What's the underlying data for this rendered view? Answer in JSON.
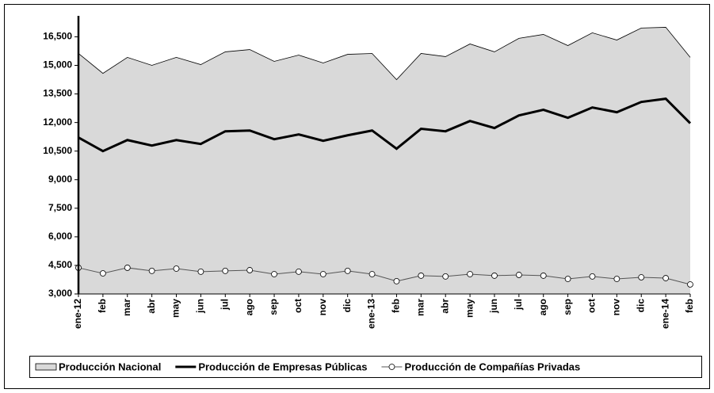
{
  "chart_data": {
    "type": "line",
    "categories": [
      "ene-12",
      "feb",
      "mar",
      "abr",
      "may",
      "jun",
      "jul",
      "ago",
      "sep",
      "oct",
      "nov",
      "dic",
      "ene-13",
      "feb",
      "mar",
      "abr",
      "may",
      "jun",
      "jul",
      "ago",
      "sep",
      "oct",
      "nov",
      "dic",
      "ene-14",
      "feb"
    ],
    "series": [
      {
        "name": "Producción Nacional",
        "color": "#d9d9d9",
        "style": "area",
        "values": [
          15625,
          14580,
          15420,
          15000,
          15420,
          15040,
          15710,
          15830,
          15210,
          15540,
          15125,
          15580,
          15625,
          14250,
          15625,
          15460,
          16125,
          15710,
          16420,
          16625,
          16040,
          16710,
          16330,
          16960,
          17000,
          15420
        ]
      },
      {
        "name": "Producción de Empresas Públicas",
        "color": "#000000",
        "style": "line",
        "values": [
          11210,
          10500,
          11080,
          10790,
          11080,
          10875,
          11540,
          11580,
          11125,
          11375,
          11040,
          11330,
          11580,
          10625,
          11670,
          11540,
          12080,
          11710,
          12375,
          12670,
          12250,
          12790,
          12540,
          13080,
          13250,
          11960
        ]
      },
      {
        "name": "Producción de Compañías Privadas",
        "color": "#555555",
        "style": "marker",
        "values": [
          4375,
          4080,
          4375,
          4210,
          4330,
          4170,
          4210,
          4250,
          4040,
          4170,
          4040,
          4210,
          4040,
          3670,
          3960,
          3920,
          4040,
          3960,
          4000,
          3960,
          3790,
          3920,
          3790,
          3875,
          3830,
          3500
        ]
      }
    ],
    "ylim": [
      3000,
      17600
    ],
    "yticks": [
      {
        "value": 3000,
        "label": "3,000"
      },
      {
        "value": 4500,
        "label": "4,500"
      },
      {
        "value": 6000,
        "label": "6,000"
      },
      {
        "value": 7500,
        "label": "7,500"
      },
      {
        "value": 9000,
        "label": "9,000"
      },
      {
        "value": 10500,
        "label": "10,500"
      },
      {
        "value": 12000,
        "label": "12,000"
      },
      {
        "value": 13500,
        "label": "13,500"
      },
      {
        "value": 15000,
        "label": "15,000"
      },
      {
        "value": 16500,
        "label": "16,500"
      }
    ],
    "legend": "bottom"
  }
}
